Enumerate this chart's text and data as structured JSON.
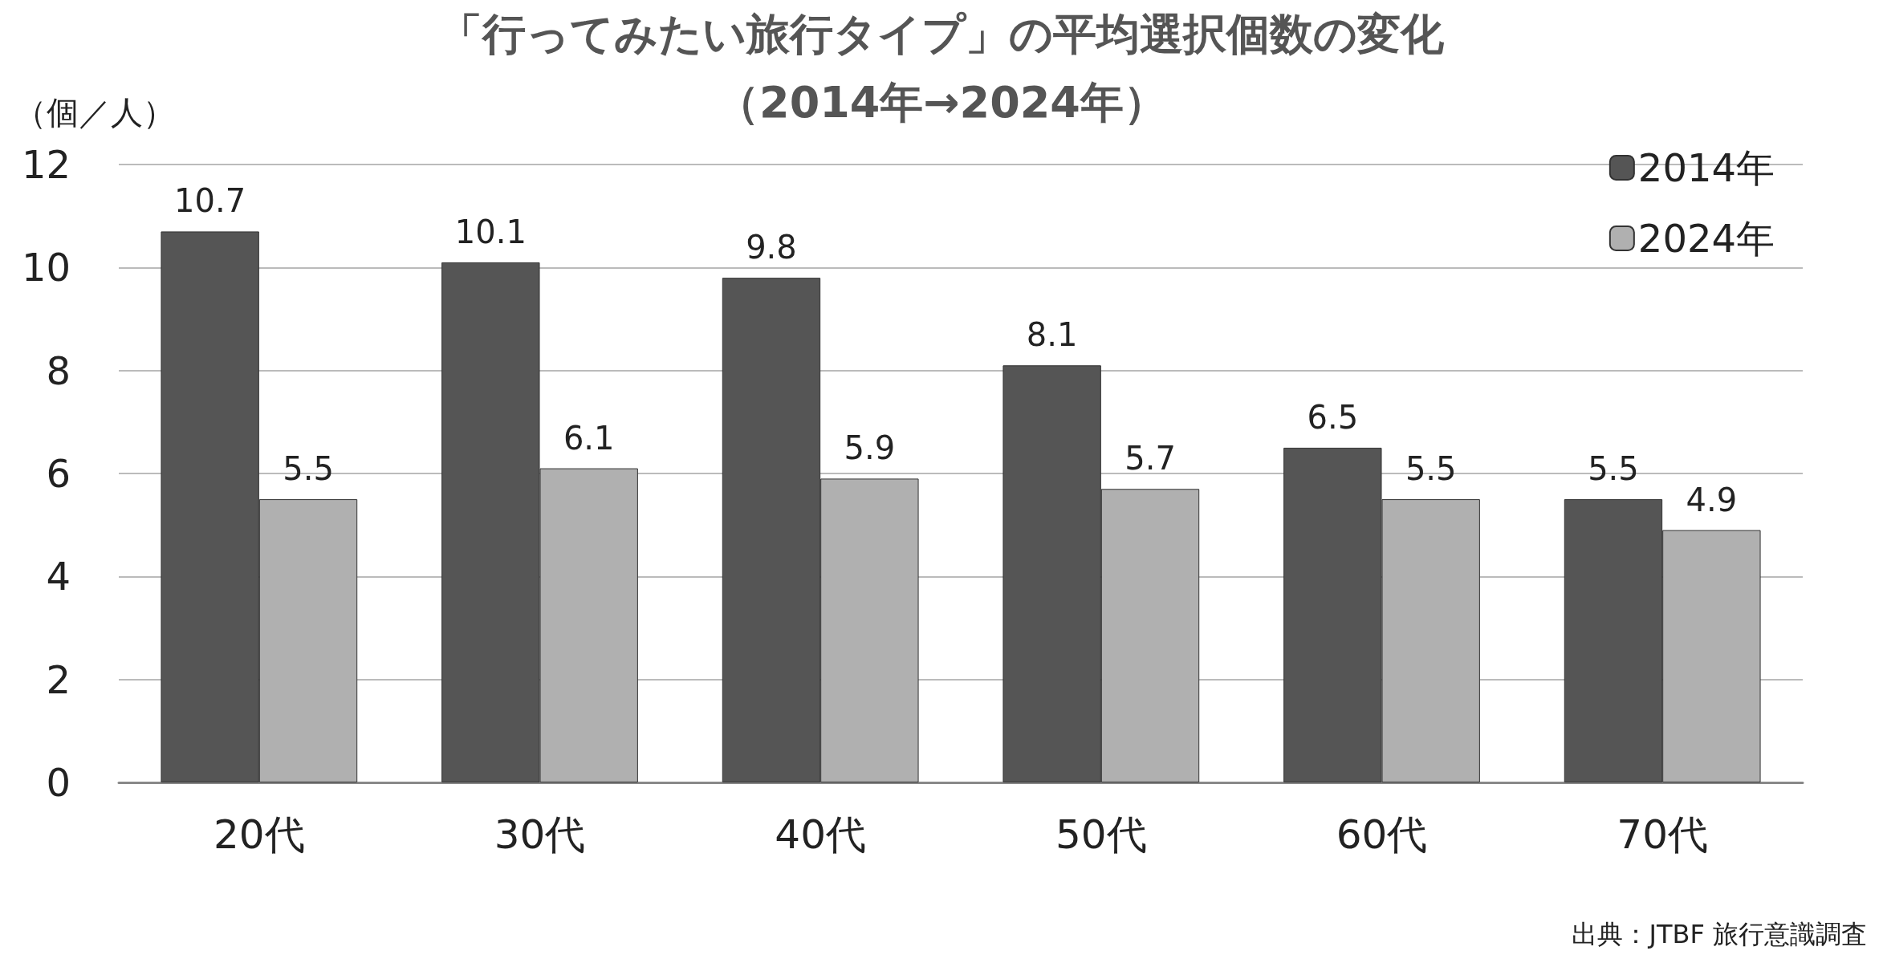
{
  "chart_data": {
    "type": "bar",
    "title": "「行ってみたい旅行タイプ」の平均選択個数の変化",
    "subtitle": "（2014年→2024年）",
    "ylabel": "（個／人）",
    "categories": [
      "20代",
      "30代",
      "40代",
      "50代",
      "60代",
      "70代"
    ],
    "series": [
      {
        "name": "2014年",
        "color": "#555555",
        "values": [
          10.7,
          10.1,
          9.8,
          8.1,
          6.5,
          5.5
        ]
      },
      {
        "name": "2024年",
        "color": "#b0b0b0",
        "values": [
          5.5,
          6.1,
          5.9,
          5.7,
          5.5,
          4.9
        ]
      }
    ],
    "ylim": [
      0,
      12
    ],
    "yticks": [
      0,
      2,
      4,
      6,
      8,
      10,
      12
    ],
    "grid": "y",
    "legend": "top right",
    "data_labels": true,
    "annotations": [
      "出典：JTBF 旅行意識調査"
    ]
  }
}
